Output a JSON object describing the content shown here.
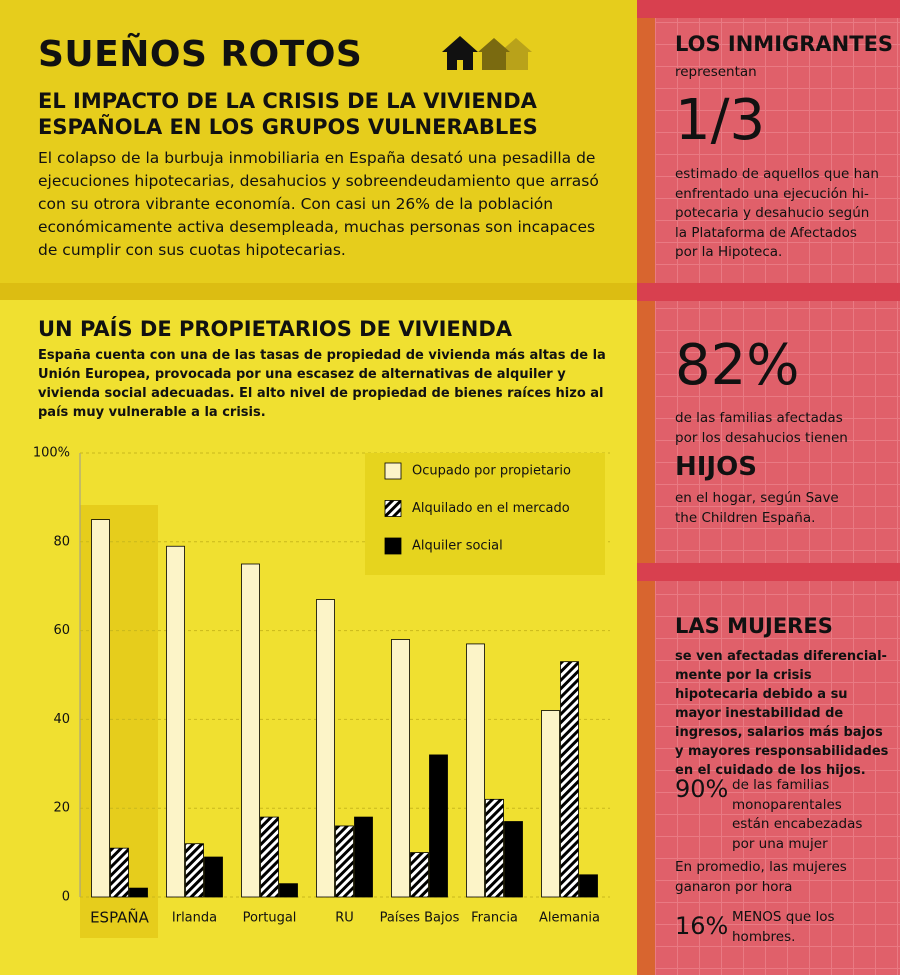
{
  "header": {
    "title": "SUEÑOS ROTOS",
    "subtitle": "EL IMPACTO DE LA CRISIS DE LA VIVIENDA ESPAÑOLA EN LOS GRUPOS VULNERABLES",
    "body": "El colapso de la burbuja inmobiliaria en España desató una pesadilla de ejecuciones hipotecarias, desahucios y sobreendeudamiento que arrasó con su otrora vibrante economía. Con casi un 26% de la población económicamente activa desempleada, muchas personas son incapaces de cumplir con sus cuotas hipotecarias."
  },
  "section": {
    "title": "UN PAÍS DE PROPIETARIOS DE VIVIENDA",
    "body": "España cuenta con una de las tasas de propiedad de vivienda más altas de la Unión Europea, provocada por una escasez de alternativas de alquiler y vivienda social adecuadas. El alto nivel de propiedad de bienes raíces hizo al país muy vulnerable a la crisis."
  },
  "chart_data": {
    "type": "bar",
    "categories": [
      "ESPAÑA",
      "Irlanda",
      "Portugal",
      "RU",
      "Países Bajos",
      "Francia",
      "Alemania"
    ],
    "series": [
      {
        "name": "Ocupado por propietario",
        "color": "#fcf4c8",
        "values": [
          85,
          79,
          75,
          67,
          58,
          57,
          42
        ]
      },
      {
        "name": "Alquilado en el mercado",
        "color": "#000000",
        "pattern": "hatch",
        "values": [
          11,
          12,
          18,
          16,
          10,
          22,
          53
        ]
      },
      {
        "name": "Alquiler social",
        "color": "#000000",
        "values": [
          2,
          9,
          3,
          18,
          32,
          17,
          5
        ]
      }
    ],
    "ylim": [
      0,
      100
    ],
    "yticks": [
      0,
      20,
      40,
      60,
      80,
      {
        "value": 100,
        "label": "100%"
      }
    ],
    "grid": true,
    "legend": "top-right"
  },
  "sidebar": {
    "immigrants": {
      "heading": "LOS INMIGRANTES",
      "lead": "representan",
      "stat": "1/3",
      "text": "estimado de aquellos que han enfrentado una ejecución hi-potecaria y desahucio según la Plataforma de Afectados por la Hipoteca."
    },
    "children": {
      "stat": "82%",
      "text": "de las familias afectadas por los desahucios tienen",
      "big": "HIJOS",
      "text2": "en el hogar, según Save the Children España."
    },
    "women": {
      "heading": "LAS MUJERES",
      "text": "se ven afectadas diferencial-mente por la crisis hipotecaria debido a su mayor inestabilidad de ingresos, salarios más bajos y mayores responsabilidades en el cuidado de los hijos.",
      "stat1": "90%",
      "stat1_text": "de las familias monoparentales están encabezadas por una mujer",
      "text2": "En promedio, las mujeres ganaron por hora",
      "stat2": "16%",
      "stat2_text": "MENOS que los hombres."
    }
  }
}
